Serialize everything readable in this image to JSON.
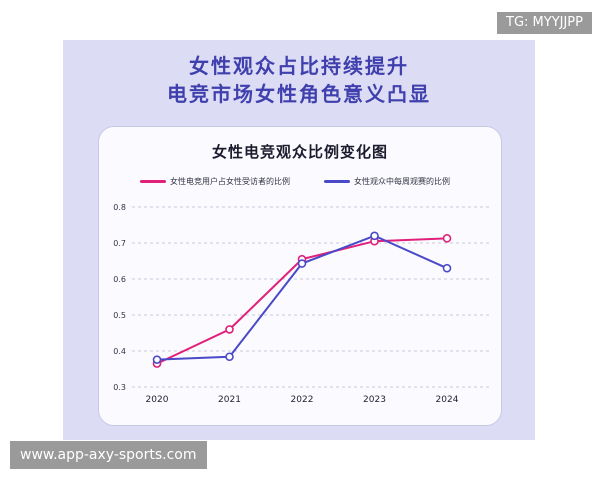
{
  "headline": {
    "line1": "女性观众占比持续提升",
    "line2": "电竞市场女性角色意义凸显"
  },
  "watermark_tg": "TG: MYYJJPP",
  "watermark_url": "www.app-axy-sports.com",
  "colors": {
    "series_user": "#e0207a",
    "series_weekly": "#4a4ac8",
    "headline": "#3f3fae",
    "grid": "#c8c8d8"
  },
  "chart_data": {
    "type": "line",
    "title": "女性电竞观众比例变化图",
    "categories": [
      "2020",
      "2021",
      "2022",
      "2023",
      "2024"
    ],
    "y_ticks": [
      "0.3",
      "0.4",
      "0.5",
      "0.6",
      "0.7",
      "0.8"
    ],
    "ylim": [
      0.3,
      0.8
    ],
    "grid": true,
    "legend_position": "top",
    "series": [
      {
        "name": "女性电竞用户占女性受访者的比例",
        "values": [
          0.365,
          0.46,
          0.655,
          0.705,
          0.713
        ]
      },
      {
        "name": "女性观众中每周观赛的比例",
        "values": [
          0.376,
          0.384,
          0.643,
          0.72,
          0.63
        ]
      }
    ]
  }
}
